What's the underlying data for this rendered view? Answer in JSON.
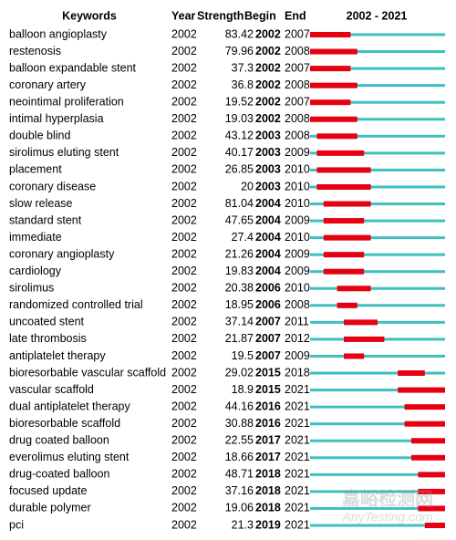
{
  "table": {
    "columns": [
      "Keywords",
      "Year",
      "Strength",
      "Begin",
      "End",
      "2002 - 2021"
    ],
    "rows": [
      [
        "balloon angioplasty",
        2002,
        83.42,
        2002,
        2007
      ],
      [
        "restenosis",
        2002,
        79.96,
        2002,
        2008
      ],
      [
        "balloon expandable stent",
        2002,
        37.3,
        2002,
        2007
      ],
      [
        "coronary artery",
        2002,
        36.8,
        2002,
        2008
      ],
      [
        "neointimal proliferation",
        2002,
        19.52,
        2002,
        2007
      ],
      [
        "intimal hyperplasia",
        2002,
        19.03,
        2002,
        2008
      ],
      [
        "double blind",
        2002,
        43.12,
        2003,
        2008
      ],
      [
        "sirolimus eluting stent",
        2002,
        40.17,
        2003,
        2009
      ],
      [
        "placement",
        2002,
        26.85,
        2003,
        2010
      ],
      [
        "coronary disease",
        2002,
        20,
        2003,
        2010
      ],
      [
        "slow release",
        2002,
        81.04,
        2004,
        2010
      ],
      [
        "standard stent",
        2002,
        47.65,
        2004,
        2009
      ],
      [
        "immediate",
        2002,
        27.4,
        2004,
        2010
      ],
      [
        "coronary angioplasty",
        2002,
        21.26,
        2004,
        2009
      ],
      [
        "cardiology",
        2002,
        19.83,
        2004,
        2009
      ],
      [
        "sirolimus",
        2002,
        20.38,
        2006,
        2010
      ],
      [
        "randomized controlled trial",
        2002,
        18.95,
        2006,
        2008
      ],
      [
        "uncoated stent",
        2002,
        37.14,
        2007,
        2011
      ],
      [
        "late thrombosis",
        2002,
        21.87,
        2007,
        2012
      ],
      [
        "antiplatelet therapy",
        2002,
        19.5,
        2007,
        2009
      ],
      [
        "bioresorbable vascular scaffold",
        2002,
        29.02,
        2015,
        2018
      ],
      [
        "vascular scaffold",
        2002,
        18.9,
        2015,
        2021
      ],
      [
        "dual antiplatelet therapy",
        2002,
        44.16,
        2016,
        2021
      ],
      [
        "bioresorbable scaffold",
        2002,
        30.88,
        2016,
        2021
      ],
      [
        "drug coated balloon",
        2002,
        22.55,
        2017,
        2021
      ],
      [
        "everolimus eluting stent",
        2002,
        18.66,
        2017,
        2021
      ],
      [
        "drug-coated balloon",
        2002,
        48.71,
        2018,
        2021
      ],
      [
        "focused update",
        2002,
        37.16,
        2018,
        2021
      ],
      [
        "durable polymer",
        2002,
        19.06,
        2018,
        2021
      ],
      [
        "pci",
        2002,
        21.3,
        2019,
        2021
      ]
    ]
  },
  "watermark": [
    "嘉峪检测网",
    "AnyTesting.com"
  ]
}
